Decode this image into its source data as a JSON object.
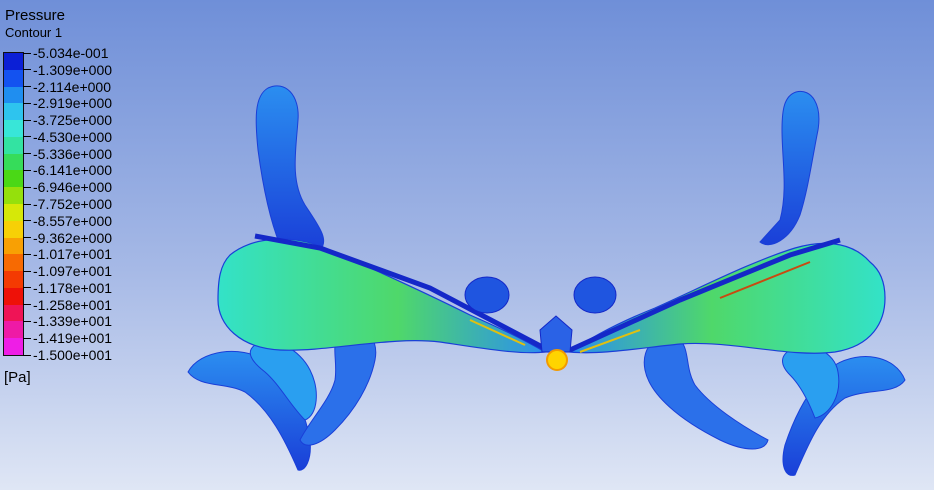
{
  "legend": {
    "title": "Pressure",
    "subtitle": "Contour 1",
    "units": "[Pa]",
    "ticks": [
      "-5.034e-001",
      "-1.309e+000",
      "-2.114e+000",
      "-2.919e+000",
      "-3.725e+000",
      "-4.530e+000",
      "-5.336e+000",
      "-6.141e+000",
      "-6.946e+000",
      "-7.752e+000",
      "-8.557e+000",
      "-9.362e+000",
      "-1.017e+001",
      "-1.097e+001",
      "-1.178e+001",
      "-1.258e+001",
      "-1.339e+001",
      "-1.419e+001",
      "-1.500e+001"
    ],
    "colors": [
      "#0b1fd6",
      "#1352f0",
      "#1f8ef0",
      "#2ec4ee",
      "#38e6d8",
      "#33e3a2",
      "#36dc5a",
      "#4ad816",
      "#95e00c",
      "#d6e808",
      "#f7d006",
      "#f8a004",
      "#f76a02",
      "#f43a02",
      "#ee1108",
      "#ef1456",
      "#ee1aa6",
      "#ee1ee6"
    ]
  },
  "scene": {
    "background_top": "#6f8fd8",
    "background_bottom": "#dfe6f5",
    "body_dark": "#1f55e0",
    "body_mid": "#2b8ef0",
    "wing_green": "#4fd86a",
    "wing_cyan": "#33e2c8",
    "core_yellow": "#ffd400"
  }
}
